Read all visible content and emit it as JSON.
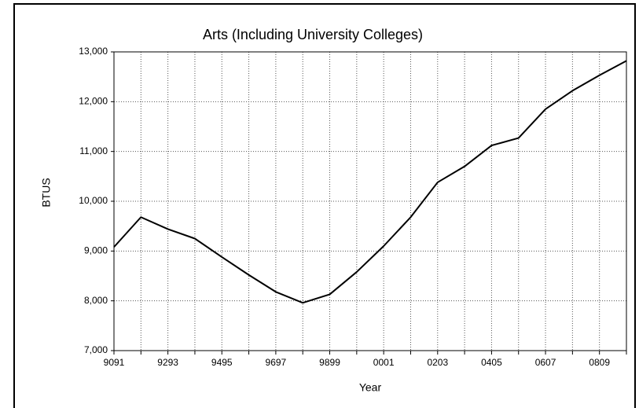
{
  "chart_data": {
    "type": "line",
    "title": "Arts (Including University Colleges)",
    "x_label": "Year",
    "y_label": "BTUS",
    "categories": [
      "9091",
      null,
      "9293",
      null,
      "9495",
      null,
      "9697",
      null,
      "9899",
      null,
      "0001",
      null,
      "0203",
      null,
      "0405",
      null,
      "0607",
      null,
      "0809",
      null
    ],
    "values": [
      9080,
      9680,
      9440,
      9250,
      8880,
      8520,
      8180,
      7960,
      8130,
      8580,
      9100,
      9680,
      10380,
      10700,
      11120,
      11270,
      11850,
      12220,
      12530,
      12820
    ],
    "color": "#000000",
    "ylim": [
      7000,
      13000
    ],
    "yticks": [
      {
        "value": 7000,
        "label": "7,000"
      },
      {
        "value": 8000,
        "label": "8,000"
      },
      {
        "value": 9000,
        "label": "9,000"
      },
      {
        "value": 10000,
        "label": "10,000"
      },
      {
        "value": 11000,
        "label": "11,000"
      },
      {
        "value": 12000,
        "label": "12,000"
      },
      {
        "value": 13000,
        "label": "13,000"
      }
    ],
    "grid": true
  }
}
